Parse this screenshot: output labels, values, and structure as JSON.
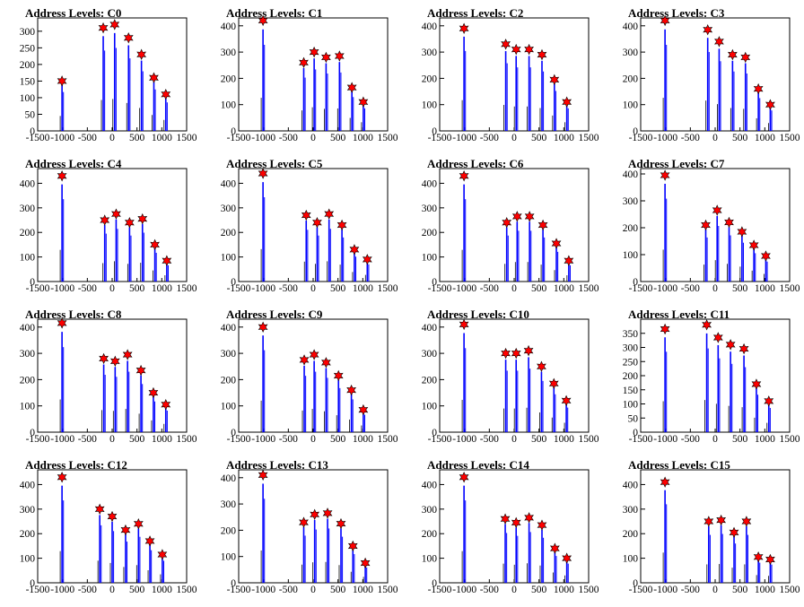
{
  "chart_data": [
    {
      "type": "histogram",
      "title": "Address Levels: C0",
      "xlim": [
        -1500,
        1500
      ],
      "ylim": [
        0,
        340
      ],
      "xticks": [
        -1500,
        -1000,
        -500,
        0,
        500,
        1000,
        1500
      ],
      "yticks": [
        0,
        50,
        100,
        150,
        200,
        250,
        300
      ],
      "peaks": [
        [
          -1010,
          150
        ],
        [
          -180,
          310
        ],
        [
          50,
          320
        ],
        [
          330,
          280
        ],
        [
          590,
          230
        ],
        [
          840,
          160
        ],
        [
          1080,
          110
        ]
      ]
    },
    {
      "type": "histogram",
      "title": "Address Levels: C1",
      "xlim": [
        -1500,
        1500
      ],
      "ylim": [
        0,
        430
      ],
      "xticks": [
        -1500,
        -1000,
        -500,
        0,
        500,
        1000,
        1500
      ],
      "yticks": [
        0,
        100,
        200,
        300,
        400
      ],
      "peaks": [
        [
          -1010,
          420
        ],
        [
          -190,
          260
        ],
        [
          20,
          300
        ],
        [
          260,
          280
        ],
        [
          530,
          285
        ],
        [
          780,
          165
        ],
        [
          1010,
          110
        ]
      ]
    },
    {
      "type": "histogram",
      "title": "Address Levels: C2",
      "xlim": [
        -1500,
        1500
      ],
      "ylim": [
        0,
        430
      ],
      "xticks": [
        -1500,
        -1000,
        -500,
        0,
        500,
        1000,
        1500
      ],
      "yticks": [
        0,
        100,
        200,
        300,
        400
      ],
      "peaks": [
        [
          -1010,
          390
        ],
        [
          -170,
          330
        ],
        [
          40,
          310
        ],
        [
          300,
          310
        ],
        [
          560,
          290
        ],
        [
          810,
          195
        ],
        [
          1060,
          110
        ]
      ]
    },
    {
      "type": "histogram",
      "title": "Address Levels: C3",
      "xlim": [
        -1500,
        1500
      ],
      "ylim": [
        0,
        430
      ],
      "xticks": [
        -1500,
        -1000,
        -500,
        0,
        500,
        1000,
        1500
      ],
      "yticks": [
        0,
        100,
        200,
        300,
        400
      ],
      "peaks": [
        [
          -1010,
          420
        ],
        [
          -150,
          385
        ],
        [
          80,
          340
        ],
        [
          350,
          290
        ],
        [
          610,
          280
        ],
        [
          870,
          160
        ],
        [
          1110,
          100
        ]
      ]
    },
    {
      "type": "histogram",
      "title": "Address Levels: C4",
      "xlim": [
        -1500,
        1500
      ],
      "ylim": [
        0,
        460
      ],
      "xticks": [
        -1500,
        -1000,
        -500,
        0,
        500,
        1000,
        1500
      ],
      "yticks": [
        0,
        100,
        200,
        300,
        400
      ],
      "peaks": [
        [
          -1010,
          430
        ],
        [
          -150,
          250
        ],
        [
          80,
          275
        ],
        [
          350,
          240
        ],
        [
          610,
          255
        ],
        [
          860,
          150
        ],
        [
          1100,
          85
        ]
      ]
    },
    {
      "type": "histogram",
      "title": "Address Levels: C5",
      "xlim": [
        -1500,
        1500
      ],
      "ylim": [
        0,
        460
      ],
      "xticks": [
        -1500,
        -1000,
        -500,
        0,
        500,
        1000,
        1500
      ],
      "yticks": [
        0,
        100,
        200,
        300,
        400
      ],
      "peaks": [
        [
          -1010,
          440
        ],
        [
          -140,
          270
        ],
        [
          80,
          240
        ],
        [
          320,
          275
        ],
        [
          580,
          230
        ],
        [
          830,
          130
        ],
        [
          1090,
          90
        ]
      ]
    },
    {
      "type": "histogram",
      "title": "Address Levels: C6",
      "xlim": [
        -1500,
        1500
      ],
      "ylim": [
        0,
        460
      ],
      "xticks": [
        -1500,
        -1000,
        -500,
        0,
        500,
        1000,
        1500
      ],
      "yticks": [
        0,
        100,
        200,
        300,
        400
      ],
      "peaks": [
        [
          -1010,
          430
        ],
        [
          -150,
          240
        ],
        [
          60,
          265
        ],
        [
          310,
          265
        ],
        [
          580,
          230
        ],
        [
          850,
          155
        ],
        [
          1100,
          85
        ]
      ]
    },
    {
      "type": "histogram",
      "title": "Address Levels: C7",
      "xlim": [
        -1500,
        1500
      ],
      "ylim": [
        0,
        420
      ],
      "xticks": [
        -1500,
        -1000,
        -500,
        0,
        500,
        1000,
        1500
      ],
      "yticks": [
        0,
        100,
        200,
        300,
        400
      ],
      "peaks": [
        [
          -1010,
          395
        ],
        [
          -190,
          210
        ],
        [
          40,
          265
        ],
        [
          280,
          220
        ],
        [
          540,
          185
        ],
        [
          780,
          135
        ],
        [
          1020,
          95
        ]
      ]
    },
    {
      "type": "histogram",
      "title": "Address Levels: C8",
      "xlim": [
        -1500,
        1500
      ],
      "ylim": [
        0,
        430
      ],
      "xticks": [
        -1500,
        -1000,
        -500,
        0,
        500,
        1000,
        1500
      ],
      "yticks": [
        0,
        100,
        200,
        300,
        400
      ],
      "peaks": [
        [
          -1010,
          415
        ],
        [
          -170,
          280
        ],
        [
          60,
          270
        ],
        [
          310,
          295
        ],
        [
          580,
          235
        ],
        [
          830,
          150
        ],
        [
          1080,
          105
        ]
      ]
    },
    {
      "type": "histogram",
      "title": "Address Levels: C9",
      "xlim": [
        -1500,
        1500
      ],
      "ylim": [
        0,
        430
      ],
      "xticks": [
        -1500,
        -1000,
        -500,
        0,
        500,
        1000,
        1500
      ],
      "yticks": [
        0,
        100,
        200,
        300,
        400
      ],
      "peaks": [
        [
          -1010,
          400
        ],
        [
          -180,
          275
        ],
        [
          20,
          295
        ],
        [
          260,
          265
        ],
        [
          510,
          215
        ],
        [
          770,
          160
        ],
        [
          1010,
          85
        ]
      ]
    },
    {
      "type": "histogram",
      "title": "Address Levels: C10",
      "xlim": [
        -1500,
        1500
      ],
      "ylim": [
        0,
        430
      ],
      "xticks": [
        -1500,
        -1000,
        -500,
        0,
        500,
        1000,
        1500
      ],
      "yticks": [
        0,
        100,
        200,
        300,
        400
      ],
      "peaks": [
        [
          -1010,
          410
        ],
        [
          -170,
          300
        ],
        [
          40,
          300
        ],
        [
          290,
          310
        ],
        [
          550,
          250
        ],
        [
          800,
          185
        ],
        [
          1050,
          120
        ]
      ]
    },
    {
      "type": "histogram",
      "title": "Address Levels: C11",
      "xlim": [
        -1500,
        1500
      ],
      "ylim": [
        0,
        400
      ],
      "xticks": [
        -1500,
        -1000,
        -500,
        0,
        500,
        1000,
        1500
      ],
      "yticks": [
        0,
        50,
        100,
        150,
        200,
        250,
        300,
        350
      ],
      "peaks": [
        [
          -1010,
          365
        ],
        [
          -170,
          380
        ],
        [
          60,
          335
        ],
        [
          310,
          310
        ],
        [
          580,
          295
        ],
        [
          830,
          170
        ],
        [
          1080,
          110
        ]
      ]
    },
    {
      "type": "histogram",
      "title": "Address Levels: C12",
      "xlim": [
        -1500,
        1500
      ],
      "ylim": [
        0,
        460
      ],
      "xticks": [
        -1500,
        -1000,
        -500,
        0,
        500,
        1000,
        1500
      ],
      "yticks": [
        0,
        100,
        200,
        300,
        400
      ],
      "peaks": [
        [
          -1010,
          430
        ],
        [
          -250,
          300
        ],
        [
          0,
          270
        ],
        [
          270,
          215
        ],
        [
          530,
          240
        ],
        [
          760,
          170
        ],
        [
          1010,
          115
        ]
      ]
    },
    {
      "type": "histogram",
      "title": "Address Levels: C13",
      "xlim": [
        -1500,
        1500
      ],
      "ylim": [
        0,
        430
      ],
      "xticks": [
        -1500,
        -1000,
        -500,
        0,
        500,
        1000,
        1500
      ],
      "yticks": [
        0,
        100,
        200,
        300,
        400
      ],
      "peaks": [
        [
          -1010,
          410
        ],
        [
          -190,
          230
        ],
        [
          30,
          260
        ],
        [
          290,
          265
        ],
        [
          560,
          225
        ],
        [
          800,
          140
        ],
        [
          1050,
          75
        ]
      ]
    },
    {
      "type": "histogram",
      "title": "Address Levels: C14",
      "xlim": [
        -1500,
        1500
      ],
      "ylim": [
        0,
        460
      ],
      "xticks": [
        -1500,
        -1000,
        -500,
        0,
        500,
        1000,
        1500
      ],
      "yticks": [
        0,
        100,
        200,
        300,
        400
      ],
      "peaks": [
        [
          -1010,
          430
        ],
        [
          -180,
          260
        ],
        [
          40,
          245
        ],
        [
          300,
          265
        ],
        [
          560,
          235
        ],
        [
          820,
          140
        ],
        [
          1060,
          100
        ]
      ]
    },
    {
      "type": "histogram",
      "title": "Address Levels: C15",
      "xlim": [
        -1500,
        1500
      ],
      "ylim": [
        0,
        460
      ],
      "xticks": [
        -1500,
        -1000,
        -500,
        0,
        500,
        1000,
        1500
      ],
      "yticks": [
        0,
        100,
        200,
        300,
        400
      ],
      "peaks": [
        [
          -1010,
          410
        ],
        [
          -130,
          250
        ],
        [
          120,
          255
        ],
        [
          380,
          205
        ],
        [
          630,
          250
        ],
        [
          870,
          105
        ],
        [
          1110,
          95
        ]
      ]
    }
  ],
  "colors": {
    "histogram": "#0000ff",
    "marker": "#ff0000",
    "marker_outline": "#000000",
    "frame": "#000000"
  }
}
